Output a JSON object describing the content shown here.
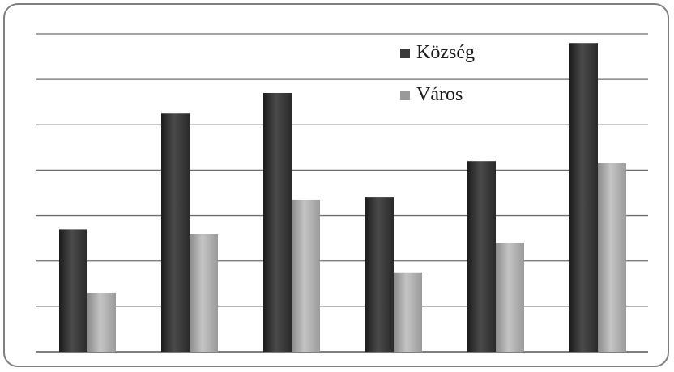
{
  "chart_data": {
    "type": "bar",
    "categories": [
      "",
      "",
      "",
      "",
      "",
      ""
    ],
    "series": [
      {
        "name": "Község",
        "values": [
          2.7,
          5.25,
          5.7,
          3.4,
          4.2,
          6.8
        ],
        "color": "#3a3a3a"
      },
      {
        "name": "Város",
        "values": [
          1.3,
          2.6,
          3.35,
          1.75,
          2.4,
          4.15
        ],
        "color": "#9a9a9a"
      }
    ],
    "title": "",
    "xlabel": "",
    "ylabel": "",
    "ylim": [
      0,
      7
    ],
    "grid": true,
    "legend_position": "top-right"
  }
}
